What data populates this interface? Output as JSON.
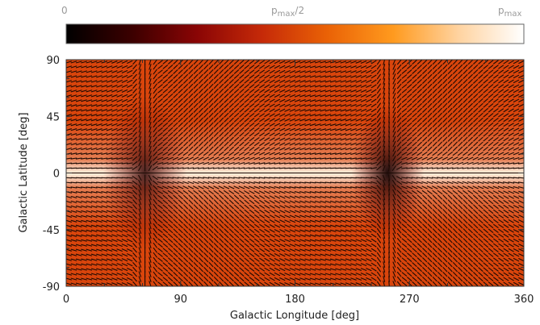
{
  "chart_data": {
    "type": "heatmap",
    "xlabel": "Galactic Longitude [deg]",
    "ylabel": "Galactic Latitude [deg]",
    "xlim": [
      0,
      360
    ],
    "ylim": [
      -90,
      90
    ],
    "xticks": [
      "0",
      "90",
      "180",
      "270",
      "360"
    ],
    "yticks": [
      "90",
      "45",
      "0",
      "-45",
      "-90"
    ],
    "colorbar": {
      "ticks": [
        {
          "main": "0",
          "sub": "",
          "suffix": ""
        },
        {
          "main": "p",
          "sub": "max",
          "suffix": "/2"
        },
        {
          "main": "p",
          "sub": "max",
          "suffix": ""
        }
      ],
      "colors": [
        "#000000",
        "#3b0000",
        "#8a0505",
        "#c62a08",
        "#ea6206",
        "#ff9a1e",
        "#ffd3a0",
        "#ffffff"
      ]
    },
    "field": {
      "background_level": 0.5,
      "plane_level": 0.95,
      "minima": [
        {
          "longitude": 62,
          "latitude": 0,
          "level": 0.2
        },
        {
          "longitude": 253,
          "latitude": 0,
          "level": 0.08
        }
      ],
      "vector_grid": {
        "columns": 90,
        "rows": 47
      }
    }
  }
}
